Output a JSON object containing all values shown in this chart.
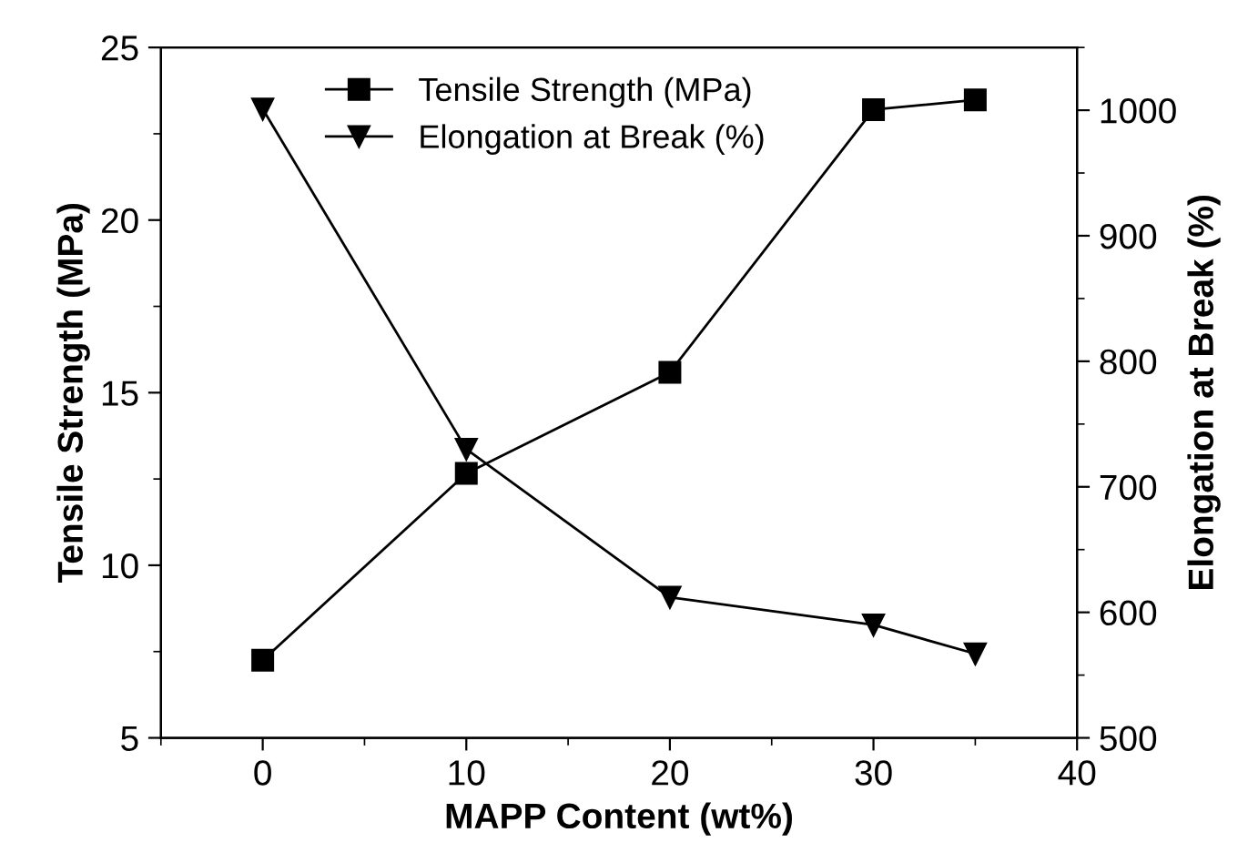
{
  "chart_data": {
    "type": "line",
    "xlabel": "MAPP Content (wt%)",
    "ylabel": "Tensile Strength (MPa)",
    "y2label": "Elongation at Break (%)",
    "x": [
      0,
      10,
      20,
      30,
      35
    ],
    "series": [
      {
        "name": "Tensile Strength (MPa)",
        "color": "#000000",
        "marker": "square",
        "values": [
          7.25,
          12.66,
          15.59,
          23.2,
          23.48
        ]
      },
      {
        "name": "Elongation at Break (%)",
        "color": "#000000",
        "marker": "triangle_down",
        "axis": "y2",
        "values": [
          1001,
          730,
          612,
          590,
          567
        ]
      }
    ],
    "xlim": [
      -5,
      40
    ],
    "xticks": [
      0,
      10,
      20,
      30,
      40
    ],
    "ylim": [
      5,
      25
    ],
    "yticks": [
      5,
      10,
      15,
      20,
      25
    ],
    "y2lim": [
      500,
      1050
    ],
    "y2ticks": [
      500,
      600,
      700,
      800,
      900,
      1000
    ],
    "legend": "top",
    "grid": false,
    "line_style": "solid"
  }
}
